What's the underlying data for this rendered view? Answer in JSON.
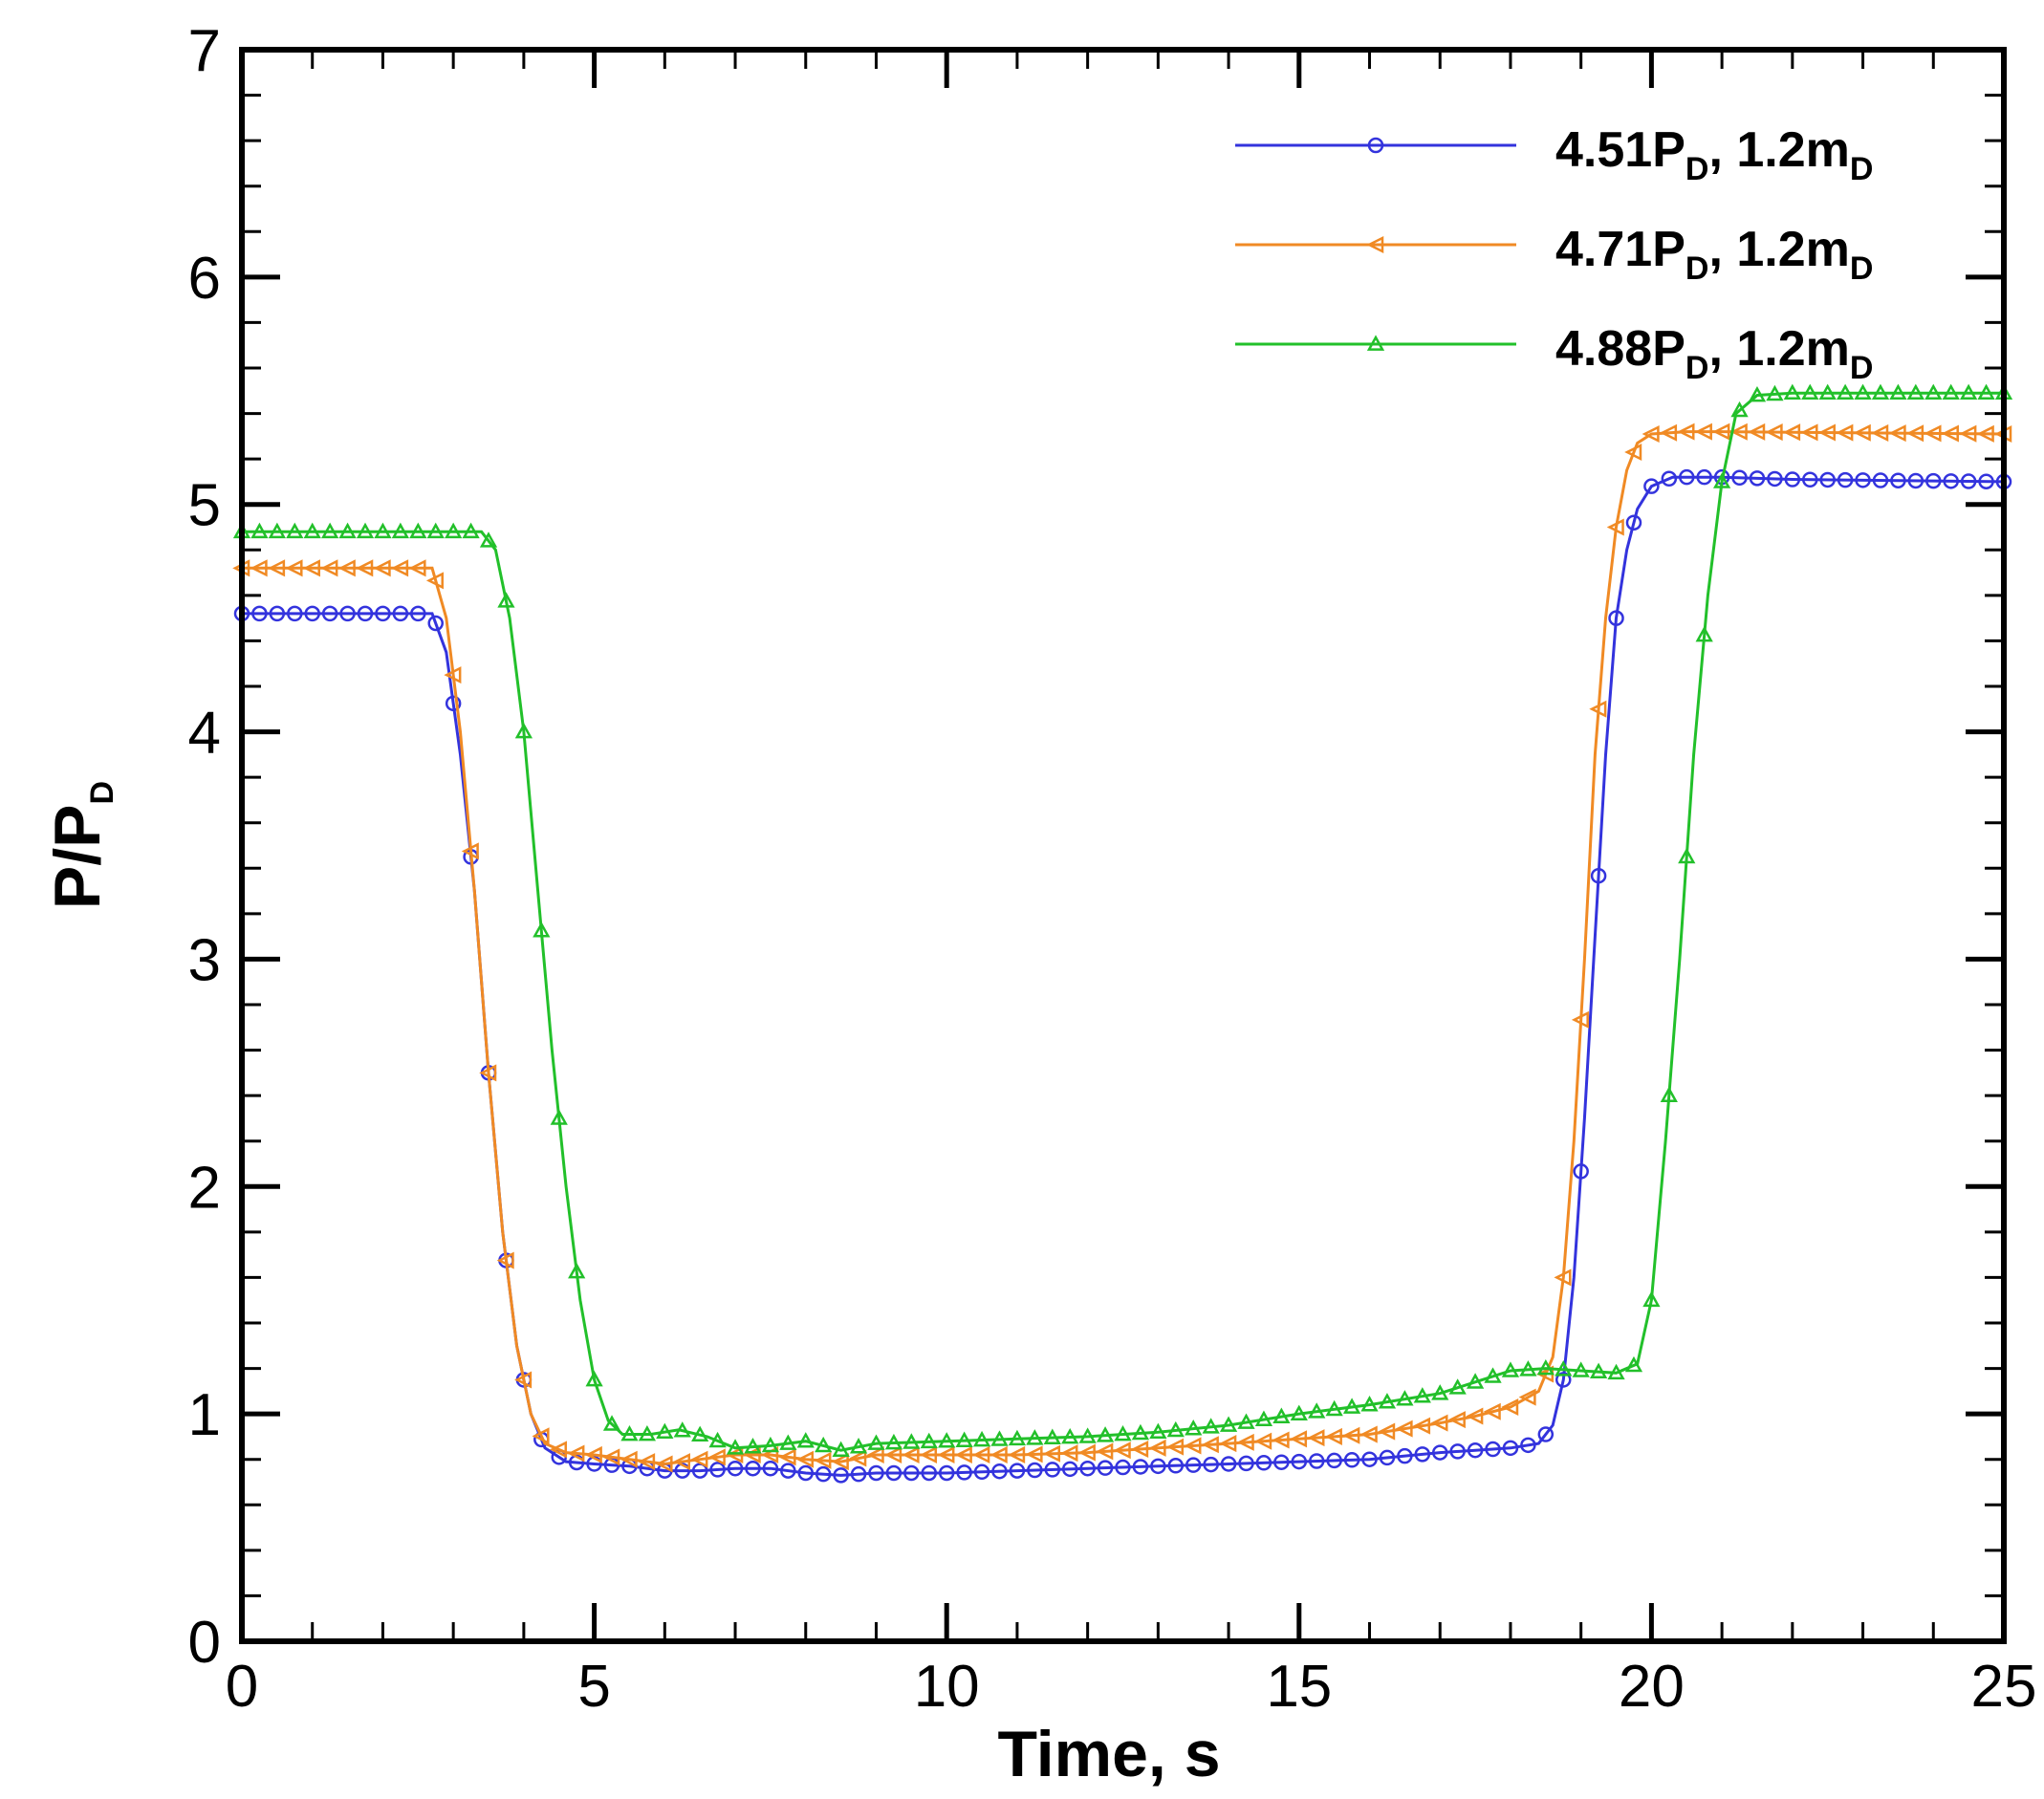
{
  "chart_data": {
    "type": "line",
    "title": "",
    "xlabel": "Time, s",
    "ylabel_main": "P/P",
    "ylabel_sub": "D",
    "xlim": [
      0,
      25
    ],
    "ylim": [
      0,
      7
    ],
    "xticks": [
      0,
      5,
      10,
      15,
      20,
      25
    ],
    "yticks": [
      0,
      1,
      2,
      3,
      4,
      5,
      6,
      7
    ],
    "grid": false,
    "legend_position": "top-right",
    "series": [
      {
        "name": "4.51P_D, 1.2m_D",
        "legend_parts": [
          "4.51P",
          "D",
          ", 1.2m",
          "D"
        ],
        "color": "#3333dd",
        "marker": "circle",
        "points": [
          [
            0,
            4.52
          ],
          [
            2.7,
            4.52
          ],
          [
            2.9,
            4.35
          ],
          [
            3.1,
            3.9
          ],
          [
            3.3,
            3.3
          ],
          [
            3.5,
            2.5
          ],
          [
            3.7,
            1.8
          ],
          [
            3.9,
            1.3
          ],
          [
            4.1,
            1.0
          ],
          [
            4.3,
            0.85
          ],
          [
            4.6,
            0.79
          ],
          [
            5.0,
            0.78
          ],
          [
            5.5,
            0.77
          ],
          [
            6.0,
            0.75
          ],
          [
            6.5,
            0.75
          ],
          [
            7.0,
            0.76
          ],
          [
            7.5,
            0.76
          ],
          [
            8.0,
            0.74
          ],
          [
            8.5,
            0.73
          ],
          [
            9.0,
            0.74
          ],
          [
            10.0,
            0.74
          ],
          [
            11.0,
            0.75
          ],
          [
            12.0,
            0.76
          ],
          [
            13.0,
            0.77
          ],
          [
            14.0,
            0.78
          ],
          [
            15.0,
            0.79
          ],
          [
            16.0,
            0.8
          ],
          [
            17.0,
            0.83
          ],
          [
            17.5,
            0.84
          ],
          [
            18.0,
            0.85
          ],
          [
            18.4,
            0.87
          ],
          [
            18.6,
            0.95
          ],
          [
            18.75,
            1.15
          ],
          [
            18.9,
            1.6
          ],
          [
            19.05,
            2.3
          ],
          [
            19.2,
            3.1
          ],
          [
            19.35,
            3.9
          ],
          [
            19.5,
            4.5
          ],
          [
            19.65,
            4.8
          ],
          [
            19.8,
            4.98
          ],
          [
            20.0,
            5.08
          ],
          [
            20.3,
            5.12
          ],
          [
            21.0,
            5.12
          ],
          [
            22.0,
            5.11
          ],
          [
            25.0,
            5.1
          ]
        ]
      },
      {
        "name": "4.71P_D, 1.2m_D",
        "legend_parts": [
          "4.71P",
          "D",
          ", 1.2m",
          "D"
        ],
        "color": "#f08a24",
        "marker": "triangle-left",
        "points": [
          [
            0,
            4.72
          ],
          [
            2.7,
            4.72
          ],
          [
            2.9,
            4.5
          ],
          [
            3.1,
            4.0
          ],
          [
            3.3,
            3.3
          ],
          [
            3.5,
            2.5
          ],
          [
            3.7,
            1.8
          ],
          [
            3.9,
            1.3
          ],
          [
            4.1,
            1.0
          ],
          [
            4.3,
            0.87
          ],
          [
            4.6,
            0.83
          ],
          [
            5.0,
            0.82
          ],
          [
            5.5,
            0.8
          ],
          [
            6.0,
            0.78
          ],
          [
            6.5,
            0.8
          ],
          [
            7.0,
            0.82
          ],
          [
            7.5,
            0.82
          ],
          [
            8.0,
            0.8
          ],
          [
            8.5,
            0.79
          ],
          [
            9.0,
            0.82
          ],
          [
            10.0,
            0.82
          ],
          [
            11.0,
            0.82
          ],
          [
            12.0,
            0.83
          ],
          [
            13.0,
            0.85
          ],
          [
            14.0,
            0.87
          ],
          [
            15.0,
            0.89
          ],
          [
            16.0,
            0.91
          ],
          [
            17.0,
            0.96
          ],
          [
            17.5,
            0.99
          ],
          [
            18.0,
            1.03
          ],
          [
            18.4,
            1.1
          ],
          [
            18.6,
            1.25
          ],
          [
            18.75,
            1.6
          ],
          [
            18.9,
            2.2
          ],
          [
            19.05,
            3.0
          ],
          [
            19.2,
            3.9
          ],
          [
            19.35,
            4.5
          ],
          [
            19.5,
            4.9
          ],
          [
            19.65,
            5.15
          ],
          [
            19.8,
            5.27
          ],
          [
            20.0,
            5.31
          ],
          [
            20.5,
            5.32
          ],
          [
            21.0,
            5.32
          ],
          [
            25.0,
            5.31
          ]
        ]
      },
      {
        "name": "4.88P_D, 1.2m_D",
        "legend_parts": [
          "4.88P",
          "D",
          ", 1.2m",
          "D"
        ],
        "color": "#22c02a",
        "marker": "triangle-up",
        "points": [
          [
            0,
            4.88
          ],
          [
            3.4,
            4.88
          ],
          [
            3.6,
            4.8
          ],
          [
            3.8,
            4.5
          ],
          [
            4.0,
            4.0
          ],
          [
            4.2,
            3.3
          ],
          [
            4.4,
            2.6
          ],
          [
            4.6,
            2.0
          ],
          [
            4.8,
            1.5
          ],
          [
            5.0,
            1.15
          ],
          [
            5.2,
            0.97
          ],
          [
            5.4,
            0.91
          ],
          [
            5.8,
            0.91
          ],
          [
            6.2,
            0.93
          ],
          [
            6.6,
            0.9
          ],
          [
            7.0,
            0.85
          ],
          [
            7.5,
            0.86
          ],
          [
            8.0,
            0.88
          ],
          [
            8.5,
            0.84
          ],
          [
            9.0,
            0.87
          ],
          [
            10.0,
            0.88
          ],
          [
            11.0,
            0.89
          ],
          [
            12.0,
            0.9
          ],
          [
            13.0,
            0.92
          ],
          [
            14.0,
            0.95
          ],
          [
            15.0,
            1.0
          ],
          [
            16.0,
            1.04
          ],
          [
            17.0,
            1.09
          ],
          [
            17.5,
            1.14
          ],
          [
            18.0,
            1.19
          ],
          [
            18.5,
            1.2
          ],
          [
            19.0,
            1.19
          ],
          [
            19.5,
            1.18
          ],
          [
            19.8,
            1.22
          ],
          [
            20.0,
            1.5
          ],
          [
            20.2,
            2.2
          ],
          [
            20.4,
            3.0
          ],
          [
            20.6,
            3.9
          ],
          [
            20.8,
            4.6
          ],
          [
            21.0,
            5.1
          ],
          [
            21.2,
            5.4
          ],
          [
            21.5,
            5.48
          ],
          [
            22.0,
            5.49
          ],
          [
            25.0,
            5.49
          ]
        ]
      }
    ]
  }
}
